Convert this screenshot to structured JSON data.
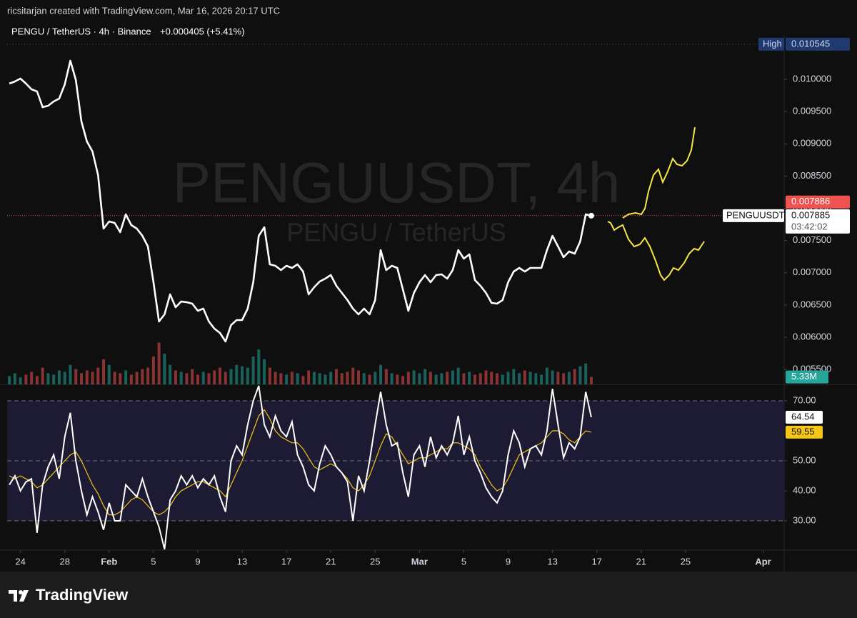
{
  "header": {
    "credit": "ricsitarjan created with TradingView.com, Mar 16, 2026 20:17 UTC",
    "symbol": "PENGU / TetherUS · 4h · Binance",
    "change": "+0.000405 (+5.41%)",
    "watermark": "PENGUUSDT, 4h",
    "watermark_sub": "PENGU / TetherUS",
    "countdown": "03:42:02",
    "logo": "TradingView"
  },
  "chart_data": [
    {
      "type": "line",
      "x": [
        23,
        23.5,
        24,
        24.5,
        25,
        25.5,
        26,
        26.5,
        27,
        27.5,
        28,
        28.5,
        29,
        29.5,
        30,
        30.5,
        31,
        31.5,
        32,
        32.5,
        33,
        33.5,
        34,
        34.5,
        35,
        35.5,
        36,
        36.5,
        37,
        37.5,
        38,
        38.5,
        39,
        39.5,
        40,
        40.5,
        41,
        41.5,
        42,
        42.5,
        43,
        43.5,
        44,
        44.5,
        45,
        45.5,
        46,
        46.5,
        47,
        47.5,
        48,
        48.5,
        49,
        49.5,
        50,
        50.5,
        51,
        51.5,
        52,
        52.5,
        53,
        53.5,
        54,
        54.5,
        55,
        55.5,
        56,
        56.5,
        57,
        57.5,
        58,
        58.5,
        59,
        59.5,
        60,
        60.5,
        61,
        61.5,
        62,
        62.5,
        63,
        63.5,
        64,
        64.5,
        65,
        65.5,
        66,
        66.5,
        67,
        67.5,
        68,
        68.5,
        69,
        69.5,
        70,
        70.5,
        71,
        71.5,
        72,
        72.5,
        73,
        73.5,
        74,
        74.5,
        75,
        75.5
      ],
      "xlim": [
        22.8,
        92.9
      ],
      "xticks": [
        {
          "value": 24,
          "label": "24"
        },
        {
          "value": 28,
          "label": "28"
        },
        {
          "value": 32,
          "label": "Feb"
        },
        {
          "value": 36,
          "label": "5"
        },
        {
          "value": 40,
          "label": "9"
        },
        {
          "value": 44,
          "label": "13"
        },
        {
          "value": 48,
          "label": "17"
        },
        {
          "value": 52,
          "label": "21"
        },
        {
          "value": 56,
          "label": "25"
        },
        {
          "value": 60,
          "label": "Mar"
        },
        {
          "value": 64,
          "label": "5"
        },
        {
          "value": 68,
          "label": "9"
        },
        {
          "value": 72,
          "label": "13"
        },
        {
          "value": 76,
          "label": "17"
        },
        {
          "value": 80,
          "label": "21"
        },
        {
          "value": 84,
          "label": "25"
        },
        {
          "value": 91,
          "label": "Apr"
        }
      ],
      "ylim": [
        0.005269,
        0.010676
      ],
      "yticks": [
        {
          "value": 0.0055,
          "label": "0.005500"
        },
        {
          "value": 0.006,
          "label": "0.006000"
        },
        {
          "value": 0.0065,
          "label": "0.006500"
        },
        {
          "value": 0.007,
          "label": "0.007000"
        },
        {
          "value": 0.0075,
          "label": "0.007500"
        },
        {
          "value": 0.008,
          "label": "0.008000"
        },
        {
          "value": 0.0085,
          "label": "0.008500"
        },
        {
          "value": 0.009,
          "label": "0.009000"
        },
        {
          "value": 0.0095,
          "label": "0.009500"
        },
        {
          "value": 0.01,
          "label": "0.010000"
        }
      ],
      "grid": false,
      "high": {
        "name": "High",
        "value": 0.010545
      },
      "marker": 0.007886,
      "series": [
        {
          "name": "PENGUUSDT",
          "color": "#ffffff",
          "values": [
            0.009934,
            0.009967,
            0.010011,
            0.009934,
            0.009845,
            0.009812,
            0.009568,
            0.00959,
            0.009657,
            0.009701,
            0.009922,
            0.010288,
            0.009989,
            0.009346,
            0.009036,
            0.008881,
            0.008515,
            0.007684,
            0.007795,
            0.007773,
            0.007629,
            0.007906,
            0.00774,
            0.007684,
            0.007573,
            0.007407,
            0.006853,
            0.006244,
            0.006355,
            0.006665,
            0.006465,
            0.006554,
            0.006543,
            0.006521,
            0.00641,
            0.006443,
            0.006244,
            0.006133,
            0.006067,
            0.005934,
            0.006188,
            0.006266,
            0.006266,
            0.006443,
            0.006853,
            0.007573,
            0.007706,
            0.00713,
            0.007108,
            0.007042,
            0.007108,
            0.007075,
            0.00713,
            0.007019,
            0.006665,
            0.006776,
            0.006864,
            0.006909,
            0.006964,
            0.006798,
            0.006687,
            0.006576,
            0.006443,
            0.006355,
            0.006443,
            0.006355,
            0.006576,
            0.007352,
            0.007042,
            0.007108,
            0.007075,
            0.006742,
            0.00641,
            0.006687,
            0.006853,
            0.006964,
            0.006853,
            0.006964,
            0.006975,
            0.006909,
            0.007042,
            0.007352,
            0.007219,
            0.007285,
            0.006887,
            0.006798,
            0.006687,
            0.006532,
            0.006521,
            0.006576,
            0.006853,
            0.007019,
            0.007075,
            0.007019,
            0.007075,
            0.007075,
            0.007075,
            0.007352,
            0.007573,
            0.007407,
            0.007241,
            0.00733,
            0.007296,
            0.007485,
            0.007906,
            0.007885
          ]
        }
      ],
      "volume": {
        "ylim": [
          0,
          250
        ],
        "up_color": "#26a69a",
        "down_color": "#ef5350",
        "values": [
          6,
          8,
          5,
          7,
          9,
          6,
          12,
          8,
          7,
          10,
          9,
          14,
          11,
          8,
          10,
          9,
          12,
          18,
          14,
          9,
          8,
          10,
          7,
          9,
          11,
          12,
          20,
          30,
          22,
          14,
          10,
          9,
          8,
          11,
          7,
          9,
          8,
          10,
          12,
          9,
          11,
          14,
          13,
          12,
          20,
          25,
          18,
          12,
          9,
          8,
          7,
          9,
          8,
          6,
          10,
          9,
          8,
          7,
          9,
          11,
          8,
          9,
          12,
          10,
          8,
          7,
          9,
          14,
          11,
          8,
          7,
          6,
          9,
          10,
          8,
          11,
          9,
          7,
          8,
          9,
          10,
          12,
          8,
          9,
          7,
          8,
          10,
          9,
          8,
          7,
          9,
          11,
          8,
          10,
          9,
          8,
          7,
          12,
          10,
          9,
          8,
          9,
          11,
          13,
          15,
          5.33
        ],
        "value_labels": [
          null,
          null,
          null,
          null,
          null,
          null,
          null,
          null,
          null,
          null,
          null,
          null,
          null,
          null,
          null,
          null,
          null,
          null,
          null,
          null,
          null,
          null,
          null,
          null,
          null,
          null,
          null,
          null,
          null,
          null,
          null,
          null,
          null,
          null,
          null,
          null,
          null,
          null,
          null,
          null,
          null,
          null,
          null,
          null,
          null,
          null,
          null,
          null,
          null,
          null,
          null,
          null,
          null,
          null,
          null,
          null,
          null,
          null,
          null,
          null,
          null,
          null,
          null,
          null,
          null,
          null,
          null,
          null,
          null,
          null,
          null,
          null,
          null,
          null,
          null,
          null,
          null,
          null,
          null,
          null,
          null,
          null,
          null,
          null,
          null,
          null,
          null,
          null,
          null,
          null,
          null,
          null,
          null,
          null,
          null,
          null,
          null,
          null,
          null,
          null,
          null,
          null,
          null,
          null,
          null,
          "5.33M"
        ]
      }
    },
    {
      "type": "line",
      "x": [
        23,
        23.5,
        24,
        24.5,
        25,
        25.5,
        26,
        26.5,
        27,
        27.5,
        28,
        28.5,
        29,
        29.5,
        30,
        30.5,
        31,
        31.5,
        32,
        32.5,
        33,
        33.5,
        34,
        34.5,
        35,
        35.5,
        36,
        36.5,
        37,
        37.5,
        38,
        38.5,
        39,
        39.5,
        40,
        40.5,
        41,
        41.5,
        42,
        42.5,
        43,
        43.5,
        44,
        44.5,
        45,
        45.5,
        46,
        46.5,
        47,
        47.5,
        48,
        48.5,
        49,
        49.5,
        50,
        50.5,
        51,
        51.5,
        52,
        52.5,
        53,
        53.5,
        54,
        54.5,
        55,
        55.5,
        56,
        56.5,
        57,
        57.5,
        58,
        58.5,
        59,
        59.5,
        60,
        60.5,
        61,
        61.5,
        62,
        62.5,
        63,
        63.5,
        64,
        64.5,
        65,
        65.5,
        66,
        66.5,
        67,
        67.5,
        68,
        68.5,
        69,
        69.5,
        70,
        70.5,
        71,
        71.5,
        72,
        72.5,
        73,
        73.5,
        74,
        74.5,
        75,
        75.5
      ],
      "xlim": [
        22.8,
        92.9
      ],
      "ylim": [
        20.24,
        75.48
      ],
      "yticks": [
        {
          "value": 70,
          "label": "70.00"
        },
        {
          "value": 50,
          "label": "50.00"
        },
        {
          "value": 40,
          "label": "40.00"
        },
        {
          "value": 30,
          "label": "30.00"
        }
      ],
      "band": [
        30,
        70
      ],
      "hlines": [
        70,
        50,
        30
      ],
      "series": [
        {
          "color": "#ffffff",
          "values": [
            42,
            45,
            40,
            43,
            44,
            26,
            42,
            48,
            52,
            44,
            58,
            66,
            50,
            40,
            32,
            38,
            33,
            27,
            36,
            30,
            30,
            42,
            40,
            38,
            44,
            38,
            33,
            28,
            20.5,
            37,
            40,
            45,
            42,
            45,
            41,
            44,
            42,
            45,
            38,
            33,
            50,
            55,
            52,
            62,
            70,
            75,
            62,
            58,
            65,
            60,
            58,
            63,
            52,
            48,
            42,
            40,
            49,
            55,
            52,
            48,
            46,
            43,
            30,
            45,
            40,
            50,
            62,
            73,
            62,
            55,
            56,
            46,
            38,
            52,
            55,
            48,
            58,
            51,
            55,
            52,
            56,
            65,
            52,
            58,
            50,
            46,
            41,
            38,
            36,
            40,
            52,
            60,
            56,
            48,
            54,
            55,
            52,
            60,
            74,
            62,
            51,
            56,
            54,
            58,
            73,
            64.54
          ]
        },
        {
          "color": "#f5c518",
          "values": [
            45,
            44,
            45,
            44,
            43,
            41,
            42,
            44,
            46,
            48,
            50,
            52,
            53,
            50,
            46,
            42,
            39,
            35,
            32,
            32,
            33,
            35,
            37,
            38,
            37,
            35,
            33,
            32,
            33,
            35,
            38,
            40,
            41,
            42,
            43,
            43,
            42,
            41,
            40,
            38,
            42,
            46,
            50,
            55,
            60,
            65,
            67,
            64,
            60,
            58,
            57,
            56,
            56,
            54,
            51,
            48,
            47,
            48,
            49,
            48,
            46,
            44,
            41,
            40,
            42,
            45,
            50,
            55,
            59,
            58,
            55,
            52,
            49,
            50,
            51,
            51,
            52,
            53,
            54,
            54,
            56,
            56,
            55,
            54,
            52,
            48,
            45,
            42,
            40,
            41,
            44,
            48,
            52,
            53,
            54,
            55,
            56,
            58,
            60,
            60,
            59,
            57,
            56,
            58,
            60,
            59.55
          ]
        }
      ]
    }
  ]
}
